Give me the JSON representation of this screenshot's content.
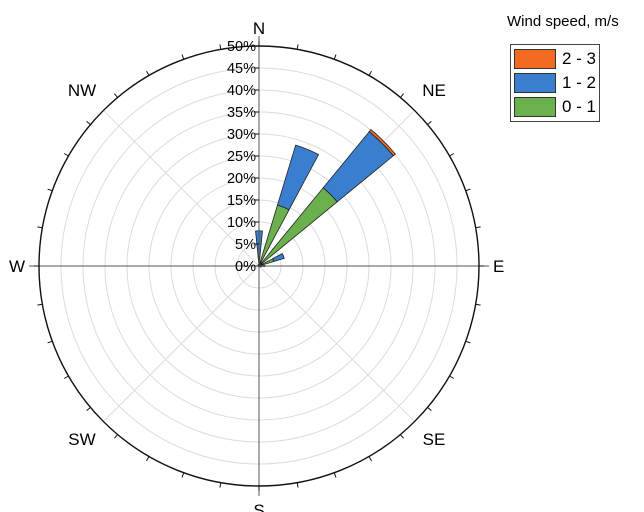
{
  "chart_data": {
    "type": "wind-rose",
    "legend_title": "Wind speed, m/s",
    "legend_placement": "top-right",
    "directions": [
      "N",
      "NE",
      "E",
      "SE",
      "S",
      "SW",
      "W",
      "NW"
    ],
    "radial_ticks": [
      "0%",
      "5%",
      "10%",
      "15%",
      "20%",
      "25%",
      "30%",
      "35%",
      "40%",
      "45%",
      "50%"
    ],
    "rmax": 50,
    "rstep": 5,
    "grid": true,
    "series": [
      {
        "name": "0 - 1",
        "color": "#6ab04c"
      },
      {
        "name": "1 - 2",
        "color": "#3a7fcf"
      },
      {
        "name": "2 - 3",
        "color": "#f26b21"
      }
    ],
    "sectors": [
      {
        "angle": 0,
        "values": [
          0.8,
          7.2,
          0
        ]
      },
      {
        "angle": 22.5,
        "values": [
          14.5,
          14.2,
          0
        ]
      },
      {
        "angle": 45,
        "values": [
          23.0,
          16.5,
          0.6
        ]
      },
      {
        "angle": 67.5,
        "values": [
          3.5,
          2.5,
          0
        ]
      },
      {
        "angle": 90,
        "values": [
          0.5,
          0.8,
          0
        ]
      },
      {
        "angle": 112.5,
        "values": [
          0.2,
          0.3,
          0
        ]
      },
      {
        "angle": 337.5,
        "values": [
          0.2,
          0.2,
          0
        ]
      }
    ]
  }
}
